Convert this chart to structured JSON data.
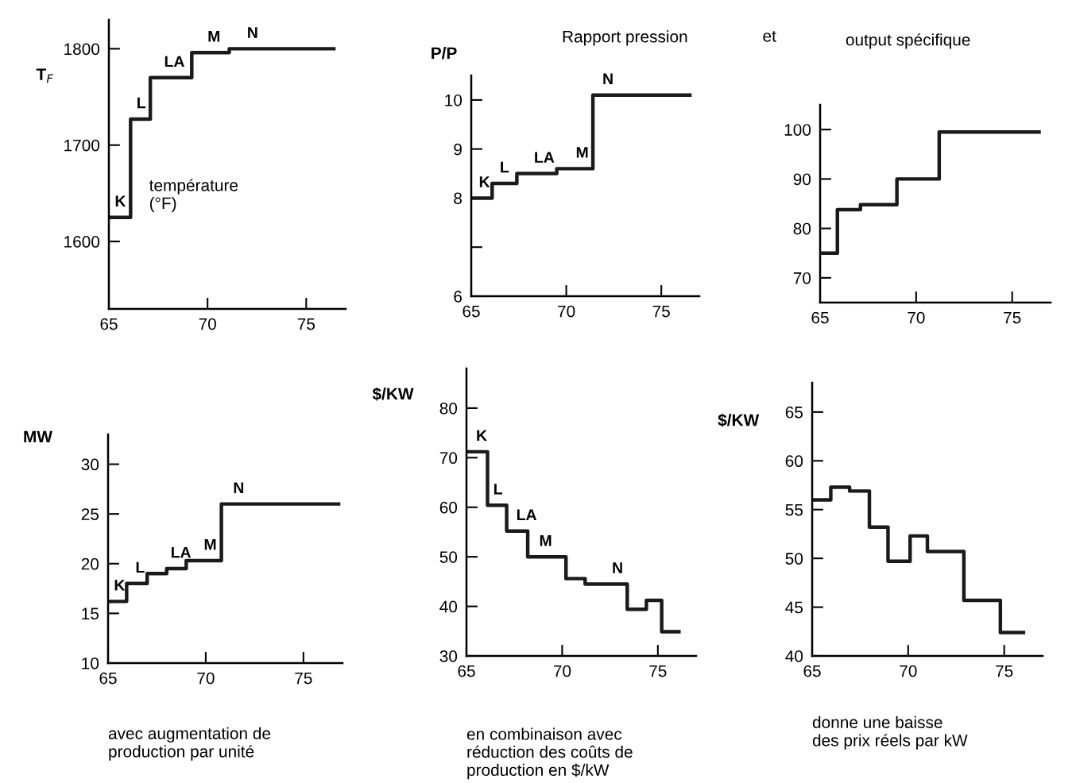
{
  "chart_data": [
    {
      "type": "step",
      "ylabel": "T$_{F}$",
      "xlim": [
        65,
        77
      ],
      "ylim": [
        1530,
        1830
      ],
      "xticks": [
        65,
        70,
        75
      ],
      "yticks": [
        1600,
        1700,
        1800
      ],
      "x": [
        65,
        66.1,
        67.1,
        69.2,
        71.1,
        76.4
      ],
      "series": [
        {
          "color": "#1a1a1a",
          "values": [
            1625,
            1727,
            1770,
            1796,
            1800,
            1800
          ]
        }
      ],
      "annotations": [
        {
          "text": "K",
          "x": 65.3,
          "y": 1625
        },
        {
          "text": "L",
          "x": 66.4,
          "y": 1727
        },
        {
          "text": "LA",
          "x": 67.8,
          "y": 1770
        },
        {
          "text": "M",
          "x": 70.0,
          "y": 1796
        },
        {
          "text": "N",
          "x": 72.0,
          "y": 1800
        },
        "température\n(°F)"
      ]
    },
    {
      "type": "step",
      "title": "Rapport pression",
      "ylabel": "P/P",
      "xlim": [
        65,
        77
      ],
      "ylim": [
        6,
        10.5
      ],
      "xticks": [
        65,
        70,
        75
      ],
      "yticks": [
        6,
        {
          "value": 7,
          "label": null
        },
        8,
        9,
        10
      ],
      "x": [
        65,
        66.1,
        67.4,
        69.5,
        71.4,
        76.5
      ],
      "series": [
        {
          "color": "#1a1a1a",
          "values": [
            8.0,
            8.3,
            8.5,
            8.6,
            10.1,
            10.1
          ]
        }
      ],
      "annotations": [
        {
          "text": "K",
          "x": 65.4,
          "y": 8.0
        },
        {
          "text": "L",
          "x": 66.5,
          "y": 8.3
        },
        {
          "text": "LA",
          "x": 68.3,
          "y": 8.5
        },
        {
          "text": "M",
          "x": 70.5,
          "y": 8.6
        },
        {
          "text": "N",
          "x": 71.9,
          "y": 10.1
        }
      ]
    },
    {
      "type": "step",
      "title": "output spécifique",
      "xlim": [
        65,
        77
      ],
      "ylim": [
        65,
        105
      ],
      "xticks": [
        65,
        70,
        75
      ],
      "yticks": [
        70,
        80,
        90,
        100
      ],
      "x": [
        65,
        65.9,
        67.1,
        69.0,
        71.2,
        76.4
      ],
      "series": [
        {
          "color": "#1a1a1a",
          "values": [
            75,
            83.8,
            84.8,
            90,
            99.5,
            99.5
          ]
        }
      ],
      "annotations": [
        "et"
      ]
    },
    {
      "type": "step",
      "ylabel": "MW",
      "xlim": [
        65,
        77
      ],
      "ylim": [
        10,
        33
      ],
      "xticks": [
        65,
        70,
        75
      ],
      "yticks": [
        10,
        15,
        20,
        25,
        30
      ],
      "x": [
        65,
        65.95,
        67.0,
        68.0,
        69.0,
        70.8,
        76.8
      ],
      "series": [
        {
          "color": "#1a1a1a",
          "values": [
            16.2,
            18.0,
            19.0,
            19.5,
            20.3,
            26.0,
            26.0
          ]
        }
      ],
      "annotations": [
        {
          "text": "K",
          "x": 65.3,
          "y": 16.2
        },
        {
          "text": "L",
          "x": 66.4,
          "y": 18.0
        },
        {
          "text": "LA",
          "x": 68.2,
          "y": 19.5
        },
        {
          "text": "M",
          "x": 69.9,
          "y": 20.3
        },
        {
          "text": "N",
          "x": 71.4,
          "y": 26.0
        },
        "avec augmentation de\nproduction par unité"
      ]
    },
    {
      "type": "step",
      "ylabel": "$/KW",
      "xlim": [
        65,
        77
      ],
      "ylim": [
        30,
        88
      ],
      "xticks": [
        65,
        70,
        75
      ],
      "yticks": [
        30,
        40,
        50,
        60,
        70,
        80
      ],
      "x": [
        65,
        66.1,
        67.1,
        68.2,
        70.2,
        71.2,
        73.4,
        74.4,
        75.2,
        76.1
      ],
      "series": [
        {
          "color": "#1a1a1a",
          "values": [
            71.2,
            60.4,
            55.2,
            50,
            45.6,
            44.5,
            39.4,
            41.2,
            34.9,
            34.9
          ]
        }
      ],
      "annotations": [
        {
          "text": "K",
          "x": 65.5,
          "y": 71.2
        },
        {
          "text": "L",
          "x": 66.4,
          "y": 60.4
        },
        {
          "text": "LA",
          "x": 67.6,
          "y": 55.2
        },
        {
          "text": "M",
          "x": 68.8,
          "y": 50
        },
        {
          "text": "N",
          "x": 72.6,
          "y": 44.5
        },
        "en combinaison avec\nréduction des coûts de\nproduction en $/kW"
      ]
    },
    {
      "type": "step",
      "ylabel": "$/KW",
      "xlim": [
        65,
        77
      ],
      "ylim": [
        40,
        68
      ],
      "xticks": [
        65,
        70,
        75
      ],
      "yticks": [
        40,
        45,
        50,
        55,
        60,
        65
      ],
      "x": [
        65,
        65.97,
        66.95,
        67.98,
        68.95,
        70.1,
        71.0,
        72.9,
        74.8,
        76.0
      ],
      "series": [
        {
          "color": "#1a1a1a",
          "values": [
            56.0,
            57.3,
            56.9,
            53.2,
            49.7,
            52.3,
            50.7,
            45.7,
            42.4,
            42.4
          ]
        }
      ],
      "annotations": [
        "donne une baisse\ndes prix réels par kW"
      ]
    }
  ]
}
